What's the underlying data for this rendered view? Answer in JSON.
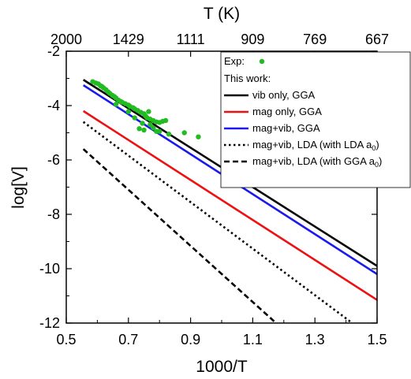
{
  "chart_data": {
    "type": "line",
    "xlabel": "1000/T",
    "ylabel": "log[V]",
    "top_xlabel": "T (K)",
    "xlim": [
      0.5,
      1.5
    ],
    "ylim": [
      -12,
      -2
    ],
    "x_ticks": [
      "0.5",
      "0.7",
      "0.9",
      "1.1",
      "1.3",
      "1.5"
    ],
    "y_ticks": [
      "-12",
      "-10",
      "-8",
      "-6",
      "-4",
      "-2"
    ],
    "top_ticks": [
      {
        "label": "2000",
        "x": 0.5
      },
      {
        "label": "1429",
        "x": 0.7
      },
      {
        "label": "1111",
        "x": 0.9
      },
      {
        "label": "909",
        "x": 1.1
      },
      {
        "label": "769",
        "x": 1.3
      },
      {
        "label": "667",
        "x": 1.5
      }
    ],
    "grid": false,
    "legend_position": "top-right",
    "legend_header": "This work:",
    "experimental": {
      "name": "Exp:",
      "color": "#22bb22",
      "points": [
        [
          0.585,
          -3.12
        ],
        [
          0.595,
          -3.17
        ],
        [
          0.603,
          -3.2
        ],
        [
          0.61,
          -3.27
        ],
        [
          0.615,
          -3.3
        ],
        [
          0.62,
          -3.35
        ],
        [
          0.628,
          -3.42
        ],
        [
          0.635,
          -3.5
        ],
        [
          0.64,
          -3.55
        ],
        [
          0.648,
          -3.62
        ],
        [
          0.655,
          -3.67
        ],
        [
          0.66,
          -3.72
        ],
        [
          0.668,
          -3.8
        ],
        [
          0.675,
          -3.85
        ],
        [
          0.68,
          -3.88
        ],
        [
          0.69,
          -3.93
        ],
        [
          0.7,
          -3.98
        ],
        [
          0.705,
          -4.03
        ],
        [
          0.715,
          -4.08
        ],
        [
          0.72,
          -4.12
        ],
        [
          0.73,
          -4.18
        ],
        [
          0.74,
          -4.25
        ],
        [
          0.75,
          -4.3
        ],
        [
          0.755,
          -4.38
        ],
        [
          0.76,
          -4.45
        ],
        [
          0.77,
          -4.5
        ],
        [
          0.78,
          -4.55
        ],
        [
          0.79,
          -4.6
        ],
        [
          0.8,
          -4.62
        ],
        [
          0.81,
          -4.58
        ],
        [
          0.82,
          -4.55
        ],
        [
          0.72,
          -4.45
        ],
        [
          0.735,
          -4.85
        ],
        [
          0.75,
          -4.9
        ],
        [
          0.77,
          -4.7
        ],
        [
          0.78,
          -4.82
        ],
        [
          0.79,
          -4.95
        ],
        [
          0.83,
          -5.05
        ],
        [
          0.88,
          -5.0
        ],
        [
          0.925,
          -5.15
        ],
        [
          0.66,
          -3.95
        ],
        [
          0.7,
          -4.22
        ],
        [
          0.745,
          -4.65
        ],
        [
          0.765,
          -4.22
        ],
        [
          0.8,
          -4.95
        ]
      ]
    },
    "series": [
      {
        "name": "vib only, GGA",
        "color": "#000000",
        "dash": "solid",
        "x": [
          0.555,
          1.5
        ],
        "y": [
          -3.05,
          -9.9
        ]
      },
      {
        "name": "mag only, GGA",
        "color": "#ee1111",
        "dash": "solid",
        "x": [
          0.555,
          1.5
        ],
        "y": [
          -4.2,
          -11.15
        ]
      },
      {
        "name": "mag+vib, GGA",
        "color": "#1a1aee",
        "dash": "solid",
        "x": [
          0.555,
          1.5
        ],
        "y": [
          -3.25,
          -10.2
        ]
      },
      {
        "name": "mag+vib, LDA (with LDA a",
        "subscript": "0",
        "suffix": ")",
        "color": "#000000",
        "dash": "dotted",
        "x": [
          0.555,
          1.42
        ],
        "y": [
          -4.6,
          -12.0
        ]
      },
      {
        "name": "mag+vib, LDA (with GGA a",
        "subscript": "0",
        "suffix": ")",
        "color": "#000000",
        "dash": "dashed",
        "x": [
          0.555,
          1.175
        ],
        "y": [
          -5.6,
          -12.0
        ]
      }
    ]
  }
}
